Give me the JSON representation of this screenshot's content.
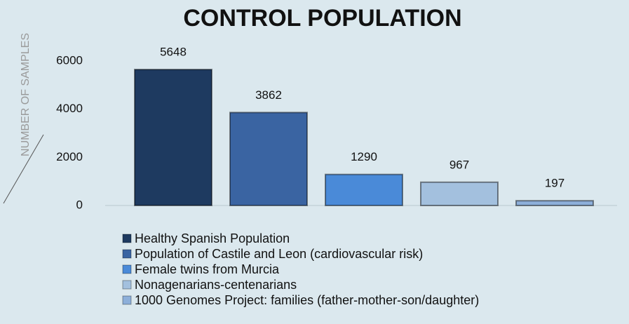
{
  "chart_data": {
    "type": "bar",
    "title": "CONTROL POPULATION",
    "y_label": "NUMBER OF SAMPLES",
    "series": [
      {
        "name": "Healthy Spanish Population",
        "color": "#1e3a60",
        "values": [
          5648
        ]
      },
      {
        "name": "Population of Castile and Leon (cardiovascular risk)",
        "color": "#3a64a2",
        "values": [
          3862
        ]
      },
      {
        "name": "Female twins from Murcia",
        "color": "#4a8ad8",
        "values": [
          1290
        ]
      },
      {
        "name": "Nonagenarians-centenarians",
        "color": "#a3c0de",
        "values": [
          967
        ]
      },
      {
        "name": "1000 Genomes Project: families (father-mother-son/daughter)",
        "color": "#8dafd9",
        "values": [
          197
        ]
      }
    ],
    "ylim": [
      0,
      6000
    ],
    "yticks": [
      0,
      2000,
      4000,
      6000
    ],
    "grid": false
  }
}
